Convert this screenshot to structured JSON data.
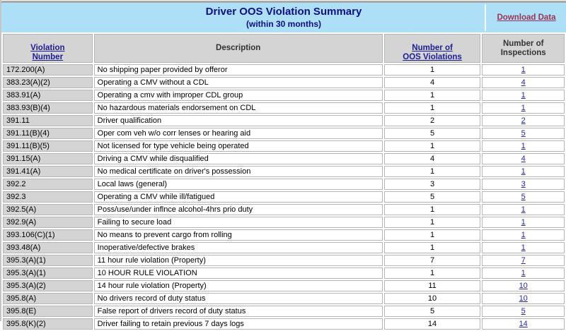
{
  "banner": {
    "title": "Driver OOS Violation Summary",
    "subtitle": "(within 30 months)",
    "download_label": "Download Data"
  },
  "colors": {
    "banner_bg": "#ade0f7",
    "title_text": "#0d0d86",
    "header_link": "#1c1c96",
    "download_link": "#993355",
    "header_bg": "#d4d4d4",
    "first_col_bg": "#d4d4d4",
    "cell_border": "#b5b5b5",
    "count_link": "#2626a0"
  },
  "table": {
    "columns": [
      {
        "label": "Violation\nNumber",
        "link": true
      },
      {
        "label": "Description",
        "link": false
      },
      {
        "label": "Number of\nOOS Violations",
        "link": true
      },
      {
        "label": "Number of\nInspections",
        "link": false
      }
    ],
    "rows": [
      {
        "violation_number": "172.200(A)",
        "description": "No shipping paper provided by offeror",
        "oos_violations": "1",
        "inspections": "1"
      },
      {
        "violation_number": "383.23(A)(2)",
        "description": "Operating a CMV without a CDL",
        "oos_violations": "4",
        "inspections": "4"
      },
      {
        "violation_number": "383.91(A)",
        "description": "Operating a cmv with improper CDL group",
        "oos_violations": "1",
        "inspections": "1"
      },
      {
        "violation_number": "383.93(B)(4)",
        "description": "No hazardous materials endorsement on CDL",
        "oos_violations": "1",
        "inspections": "1"
      },
      {
        "violation_number": "391.11",
        "description": "Driver qualification",
        "oos_violations": "2",
        "inspections": "2"
      },
      {
        "violation_number": "391.11(B)(4)",
        "description": "Oper com veh w/o corr lenses or hearing aid",
        "oos_violations": "5",
        "inspections": "5"
      },
      {
        "violation_number": "391.11(B)(5)",
        "description": "Not licensed for type vehicle being operated",
        "oos_violations": "1",
        "inspections": "1"
      },
      {
        "violation_number": "391.15(A)",
        "description": "Driving a CMV while disqualified",
        "oos_violations": "4",
        "inspections": "4"
      },
      {
        "violation_number": "391.41(A)",
        "description": "No medical certificate on driver's possession",
        "oos_violations": "1",
        "inspections": "1"
      },
      {
        "violation_number": "392.2",
        "description": "Local laws (general)",
        "oos_violations": "3",
        "inspections": "3"
      },
      {
        "violation_number": "392.3",
        "description": "Operating a CMV while ill/fatigued",
        "oos_violations": "5",
        "inspections": "5"
      },
      {
        "violation_number": "392.5(A)",
        "description": "Poss/use/under inflnce alcohol-4hrs prio duty",
        "oos_violations": "1",
        "inspections": "1"
      },
      {
        "violation_number": "392.9(A)",
        "description": "Failing to secure load",
        "oos_violations": "1",
        "inspections": "1"
      },
      {
        "violation_number": "393.106(C)(1)",
        "description": "No means to prevent cargo from rolling",
        "oos_violations": "1",
        "inspections": "1"
      },
      {
        "violation_number": "393.48(A)",
        "description": "Inoperative/defective brakes",
        "oos_violations": "1",
        "inspections": "1"
      },
      {
        "violation_number": "395.3(A)(1)",
        "description": "11 hour rule violation (Property)",
        "oos_violations": "7",
        "inspections": "7"
      },
      {
        "violation_number": "395.3(A)(1)",
        "description": "10 HOUR RULE VIOLATION",
        "oos_violations": "1",
        "inspections": "1"
      },
      {
        "violation_number": "395.3(A)(2)",
        "description": "14 hour rule violation (Property)",
        "oos_violations": "11",
        "inspections": "10"
      },
      {
        "violation_number": "395.8(A)",
        "description": "No drivers record of duty status",
        "oos_violations": "10",
        "inspections": "10"
      },
      {
        "violation_number": "395.8(E)",
        "description": "False report of drivers record of duty status",
        "oos_violations": "5",
        "inspections": "5"
      },
      {
        "violation_number": "395.8(K)(2)",
        "description": "Driver failing to retain previous 7 days logs",
        "oos_violations": "14",
        "inspections": "14"
      }
    ]
  }
}
